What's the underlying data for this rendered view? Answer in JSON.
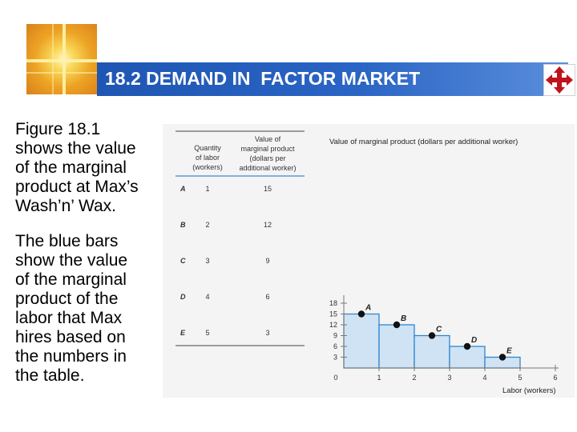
{
  "title": "18.2 DEMAND IN  FACTOR MARKET",
  "paragraph1": [
    "Figure 18.1",
    "shows the value",
    "of the marginal",
    "product at Max’s",
    "Wash’n’ Wax."
  ],
  "paragraph2": [
    "The blue bars",
    "show the value",
    "of the marginal",
    "product of the",
    "labor that Max",
    "hires based on",
    "the numbers in",
    "the table."
  ],
  "table": {
    "header_quantity": [
      "Quantity",
      "of labor",
      "(workers)"
    ],
    "header_value": [
      "Value of",
      "marginal product",
      "(dollars per",
      "additional worker)"
    ],
    "rows": [
      {
        "label": "A",
        "quantity": "1",
        "value": "15"
      },
      {
        "label": "B",
        "quantity": "2",
        "value": "12"
      },
      {
        "label": "C",
        "quantity": "3",
        "value": "9"
      },
      {
        "label": "D",
        "quantity": "4",
        "value": "6"
      },
      {
        "label": "E",
        "quantity": "5",
        "value": "3"
      }
    ]
  },
  "icons": {
    "logo": "cross-glow-logo",
    "nav": "four-arrow-move-icon"
  },
  "colors": {
    "title_bar": "#1f56b3",
    "bar_fill": "#cfe3f5",
    "bar_stroke": "#2f86cf",
    "nav_icon": "#c0121c"
  },
  "chart_data": {
    "type": "bar",
    "title": "Value of marginal product (dollars per additional worker)",
    "xlabel": "Labor (workers)",
    "ylabel": "",
    "categories": [
      "1",
      "2",
      "3",
      "4",
      "5"
    ],
    "values": [
      15,
      12,
      9,
      6,
      3
    ],
    "point_labels": [
      "A",
      "B",
      "C",
      "D",
      "E"
    ],
    "xlim": [
      0,
      6
    ],
    "ylim": [
      0,
      18
    ],
    "xticks": [
      "0",
      "1",
      "2",
      "3",
      "4",
      "5",
      "6"
    ],
    "yticks": [
      "3",
      "6",
      "9",
      "12",
      "15",
      "18"
    ],
    "grid": false,
    "legend": "none"
  }
}
